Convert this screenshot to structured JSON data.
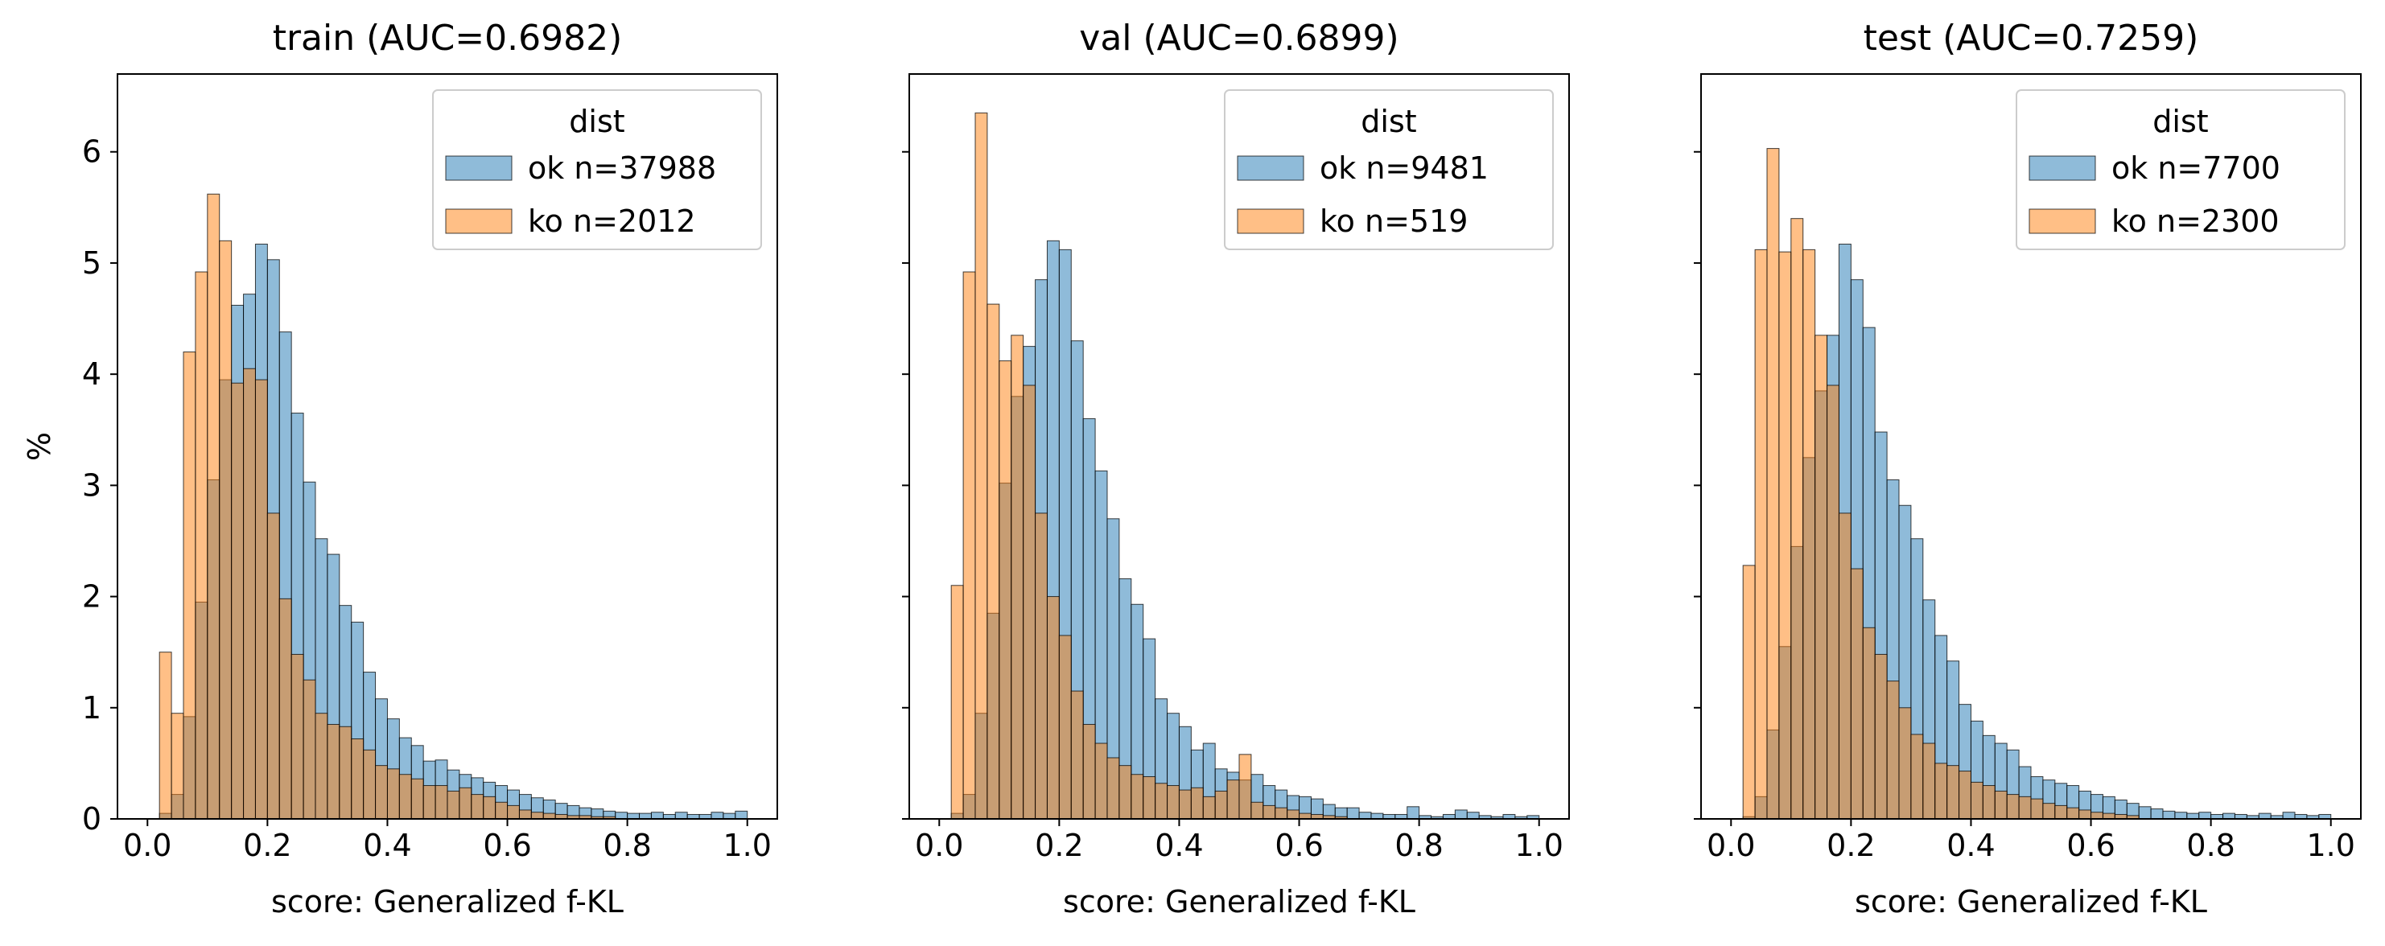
{
  "figure": {
    "ylabel": "%",
    "xlabel": "score: Generalized f-KL",
    "legend_title": "dist"
  },
  "colors": {
    "ok": "#1f77b4",
    "ko": "#ff7f0e",
    "edge": "#000000"
  },
  "chart_data": [
    {
      "type": "bar",
      "title": "train (AUC=0.6982)",
      "xlabel": "score: Generalized f-KL",
      "ylabel": "%",
      "xlim": [
        -0.05,
        1.05
      ],
      "ylim": [
        0,
        6.7
      ],
      "xticks": [
        "0.0",
        "0.2",
        "0.4",
        "0.6",
        "0.8",
        "1.0"
      ],
      "yticks": [
        "0",
        "1",
        "2",
        "3",
        "4",
        "5",
        "6"
      ],
      "grid": false,
      "legend_position": "top-right",
      "bin_width": 0.02,
      "series": [
        {
          "name": "ok n=37988",
          "key": "ok",
          "bin_starts": [
            0.02,
            0.04,
            0.06,
            0.08,
            0.1,
            0.12,
            0.14,
            0.16,
            0.18,
            0.2,
            0.22,
            0.24,
            0.26,
            0.28,
            0.3,
            0.32,
            0.34,
            0.36,
            0.38,
            0.4,
            0.42,
            0.44,
            0.46,
            0.48,
            0.5,
            0.52,
            0.54,
            0.56,
            0.58,
            0.6,
            0.62,
            0.64,
            0.66,
            0.68,
            0.7,
            0.72,
            0.74,
            0.76,
            0.78,
            0.8,
            0.82,
            0.84,
            0.86,
            0.88,
            0.9,
            0.92,
            0.94,
            0.96,
            0.98
          ],
          "values": [
            0.05,
            0.22,
            0.92,
            1.95,
            3.05,
            3.95,
            4.62,
            4.72,
            5.17,
            5.03,
            4.38,
            3.65,
            3.03,
            2.52,
            2.38,
            1.92,
            1.77,
            1.32,
            1.08,
            0.9,
            0.73,
            0.66,
            0.52,
            0.53,
            0.44,
            0.4,
            0.37,
            0.33,
            0.3,
            0.26,
            0.22,
            0.19,
            0.17,
            0.14,
            0.12,
            0.1,
            0.09,
            0.07,
            0.06,
            0.05,
            0.05,
            0.06,
            0.04,
            0.06,
            0.04,
            0.04,
            0.06,
            0.05,
            0.07
          ]
        },
        {
          "name": "ko n=2012",
          "key": "ko",
          "bin_starts": [
            0.02,
            0.04,
            0.06,
            0.08,
            0.1,
            0.12,
            0.14,
            0.16,
            0.18,
            0.2,
            0.22,
            0.24,
            0.26,
            0.28,
            0.3,
            0.32,
            0.34,
            0.36,
            0.38,
            0.4,
            0.42,
            0.44,
            0.46,
            0.48,
            0.5,
            0.52,
            0.54,
            0.56,
            0.58,
            0.6,
            0.62,
            0.64,
            0.66,
            0.68,
            0.7,
            0.72,
            0.74,
            0.76
          ],
          "values": [
            1.5,
            0.95,
            4.2,
            4.92,
            5.62,
            5.2,
            3.92,
            4.05,
            3.95,
            2.75,
            1.98,
            1.48,
            1.25,
            0.95,
            0.85,
            0.83,
            0.72,
            0.62,
            0.48,
            0.45,
            0.4,
            0.36,
            0.3,
            0.3,
            0.25,
            0.28,
            0.22,
            0.2,
            0.15,
            0.12,
            0.08,
            0.06,
            0.05,
            0.04,
            0.03,
            0.03,
            0.02,
            0.02
          ]
        }
      ]
    },
    {
      "type": "bar",
      "title": "val (AUC=0.6899)",
      "xlabel": "score: Generalized f-KL",
      "ylabel": "",
      "xlim": [
        -0.05,
        1.05
      ],
      "ylim": [
        0,
        6.7
      ],
      "xticks": [
        "0.0",
        "0.2",
        "0.4",
        "0.6",
        "0.8",
        "1.0"
      ],
      "yticks": [
        "0",
        "1",
        "2",
        "3",
        "4",
        "5",
        "6"
      ],
      "grid": false,
      "legend_position": "top-right",
      "bin_width": 0.02,
      "series": [
        {
          "name": "ok n=9481",
          "key": "ok",
          "bin_starts": [
            0.02,
            0.04,
            0.06,
            0.08,
            0.1,
            0.12,
            0.14,
            0.16,
            0.18,
            0.2,
            0.22,
            0.24,
            0.26,
            0.28,
            0.3,
            0.32,
            0.34,
            0.36,
            0.38,
            0.4,
            0.42,
            0.44,
            0.46,
            0.48,
            0.5,
            0.52,
            0.54,
            0.56,
            0.58,
            0.6,
            0.62,
            0.64,
            0.66,
            0.68,
            0.7,
            0.72,
            0.74,
            0.76,
            0.78,
            0.8,
            0.82,
            0.84,
            0.86,
            0.88,
            0.9,
            0.92,
            0.94,
            0.96,
            0.98
          ],
          "values": [
            0.05,
            0.22,
            0.95,
            1.85,
            3.02,
            3.8,
            4.25,
            4.85,
            5.2,
            5.12,
            4.3,
            3.6,
            3.13,
            2.7,
            2.16,
            1.93,
            1.62,
            1.08,
            0.95,
            0.83,
            0.62,
            0.68,
            0.45,
            0.42,
            0.35,
            0.4,
            0.3,
            0.26,
            0.21,
            0.2,
            0.18,
            0.13,
            0.1,
            0.1,
            0.06,
            0.05,
            0.04,
            0.04,
            0.11,
            0.03,
            0.02,
            0.04,
            0.08,
            0.06,
            0.03,
            0.02,
            0.04,
            0.02,
            0.03
          ]
        },
        {
          "name": "ko n=519",
          "key": "ko",
          "bin_starts": [
            0.02,
            0.04,
            0.06,
            0.08,
            0.1,
            0.12,
            0.14,
            0.16,
            0.18,
            0.2,
            0.22,
            0.24,
            0.26,
            0.28,
            0.3,
            0.32,
            0.34,
            0.36,
            0.38,
            0.4,
            0.42,
            0.44,
            0.46,
            0.48,
            0.5,
            0.52,
            0.54,
            0.56,
            0.58,
            0.6,
            0.62,
            0.64,
            0.66
          ],
          "values": [
            2.1,
            4.92,
            6.35,
            4.63,
            4.12,
            4.35,
            3.9,
            2.75,
            2.0,
            1.65,
            1.15,
            0.85,
            0.68,
            0.55,
            0.48,
            0.4,
            0.38,
            0.32,
            0.3,
            0.26,
            0.28,
            0.2,
            0.25,
            0.35,
            0.58,
            0.15,
            0.12,
            0.1,
            0.08,
            0.05,
            0.04,
            0.03,
            0.02
          ]
        }
      ]
    },
    {
      "type": "bar",
      "title": "test (AUC=0.7259)",
      "xlabel": "score: Generalized f-KL",
      "ylabel": "",
      "xlim": [
        -0.05,
        1.05
      ],
      "ylim": [
        0,
        6.7
      ],
      "xticks": [
        "0.0",
        "0.2",
        "0.4",
        "0.6",
        "0.8",
        "1.0"
      ],
      "yticks": [
        "0",
        "1",
        "2",
        "3",
        "4",
        "5",
        "6"
      ],
      "grid": false,
      "legend_position": "top-right",
      "bin_width": 0.02,
      "series": [
        {
          "name": "ok n=7700",
          "key": "ok",
          "bin_starts": [
            0.02,
            0.04,
            0.06,
            0.08,
            0.1,
            0.12,
            0.14,
            0.16,
            0.18,
            0.2,
            0.22,
            0.24,
            0.26,
            0.28,
            0.3,
            0.32,
            0.34,
            0.36,
            0.38,
            0.4,
            0.42,
            0.44,
            0.46,
            0.48,
            0.5,
            0.52,
            0.54,
            0.56,
            0.58,
            0.6,
            0.62,
            0.64,
            0.66,
            0.68,
            0.7,
            0.72,
            0.74,
            0.76,
            0.78,
            0.8,
            0.82,
            0.84,
            0.86,
            0.88,
            0.9,
            0.92,
            0.94,
            0.96,
            0.98
          ],
          "values": [
            0.02,
            0.2,
            0.8,
            1.55,
            2.45,
            3.25,
            3.85,
            4.35,
            5.17,
            4.85,
            4.42,
            3.48,
            3.05,
            2.82,
            2.52,
            1.97,
            1.65,
            1.42,
            1.03,
            0.88,
            0.75,
            0.68,
            0.62,
            0.47,
            0.38,
            0.35,
            0.32,
            0.3,
            0.25,
            0.22,
            0.2,
            0.17,
            0.14,
            0.11,
            0.09,
            0.07,
            0.06,
            0.05,
            0.06,
            0.04,
            0.05,
            0.04,
            0.03,
            0.05,
            0.03,
            0.06,
            0.04,
            0.03,
            0.04
          ]
        },
        {
          "name": "ko n=2300",
          "key": "ko",
          "bin_starts": [
            0.02,
            0.04,
            0.06,
            0.08,
            0.1,
            0.12,
            0.14,
            0.16,
            0.18,
            0.2,
            0.22,
            0.24,
            0.26,
            0.28,
            0.3,
            0.32,
            0.34,
            0.36,
            0.38,
            0.4,
            0.42,
            0.44,
            0.46,
            0.48,
            0.5,
            0.52,
            0.54,
            0.56,
            0.58,
            0.6,
            0.62,
            0.64,
            0.66
          ],
          "values": [
            2.28,
            5.12,
            6.03,
            5.1,
            5.4,
            5.12,
            4.35,
            3.9,
            2.75,
            2.25,
            1.72,
            1.48,
            1.24,
            1.0,
            0.76,
            0.68,
            0.5,
            0.48,
            0.43,
            0.33,
            0.3,
            0.25,
            0.22,
            0.2,
            0.18,
            0.14,
            0.12,
            0.1,
            0.08,
            0.06,
            0.05,
            0.04,
            0.03
          ]
        }
      ]
    }
  ]
}
